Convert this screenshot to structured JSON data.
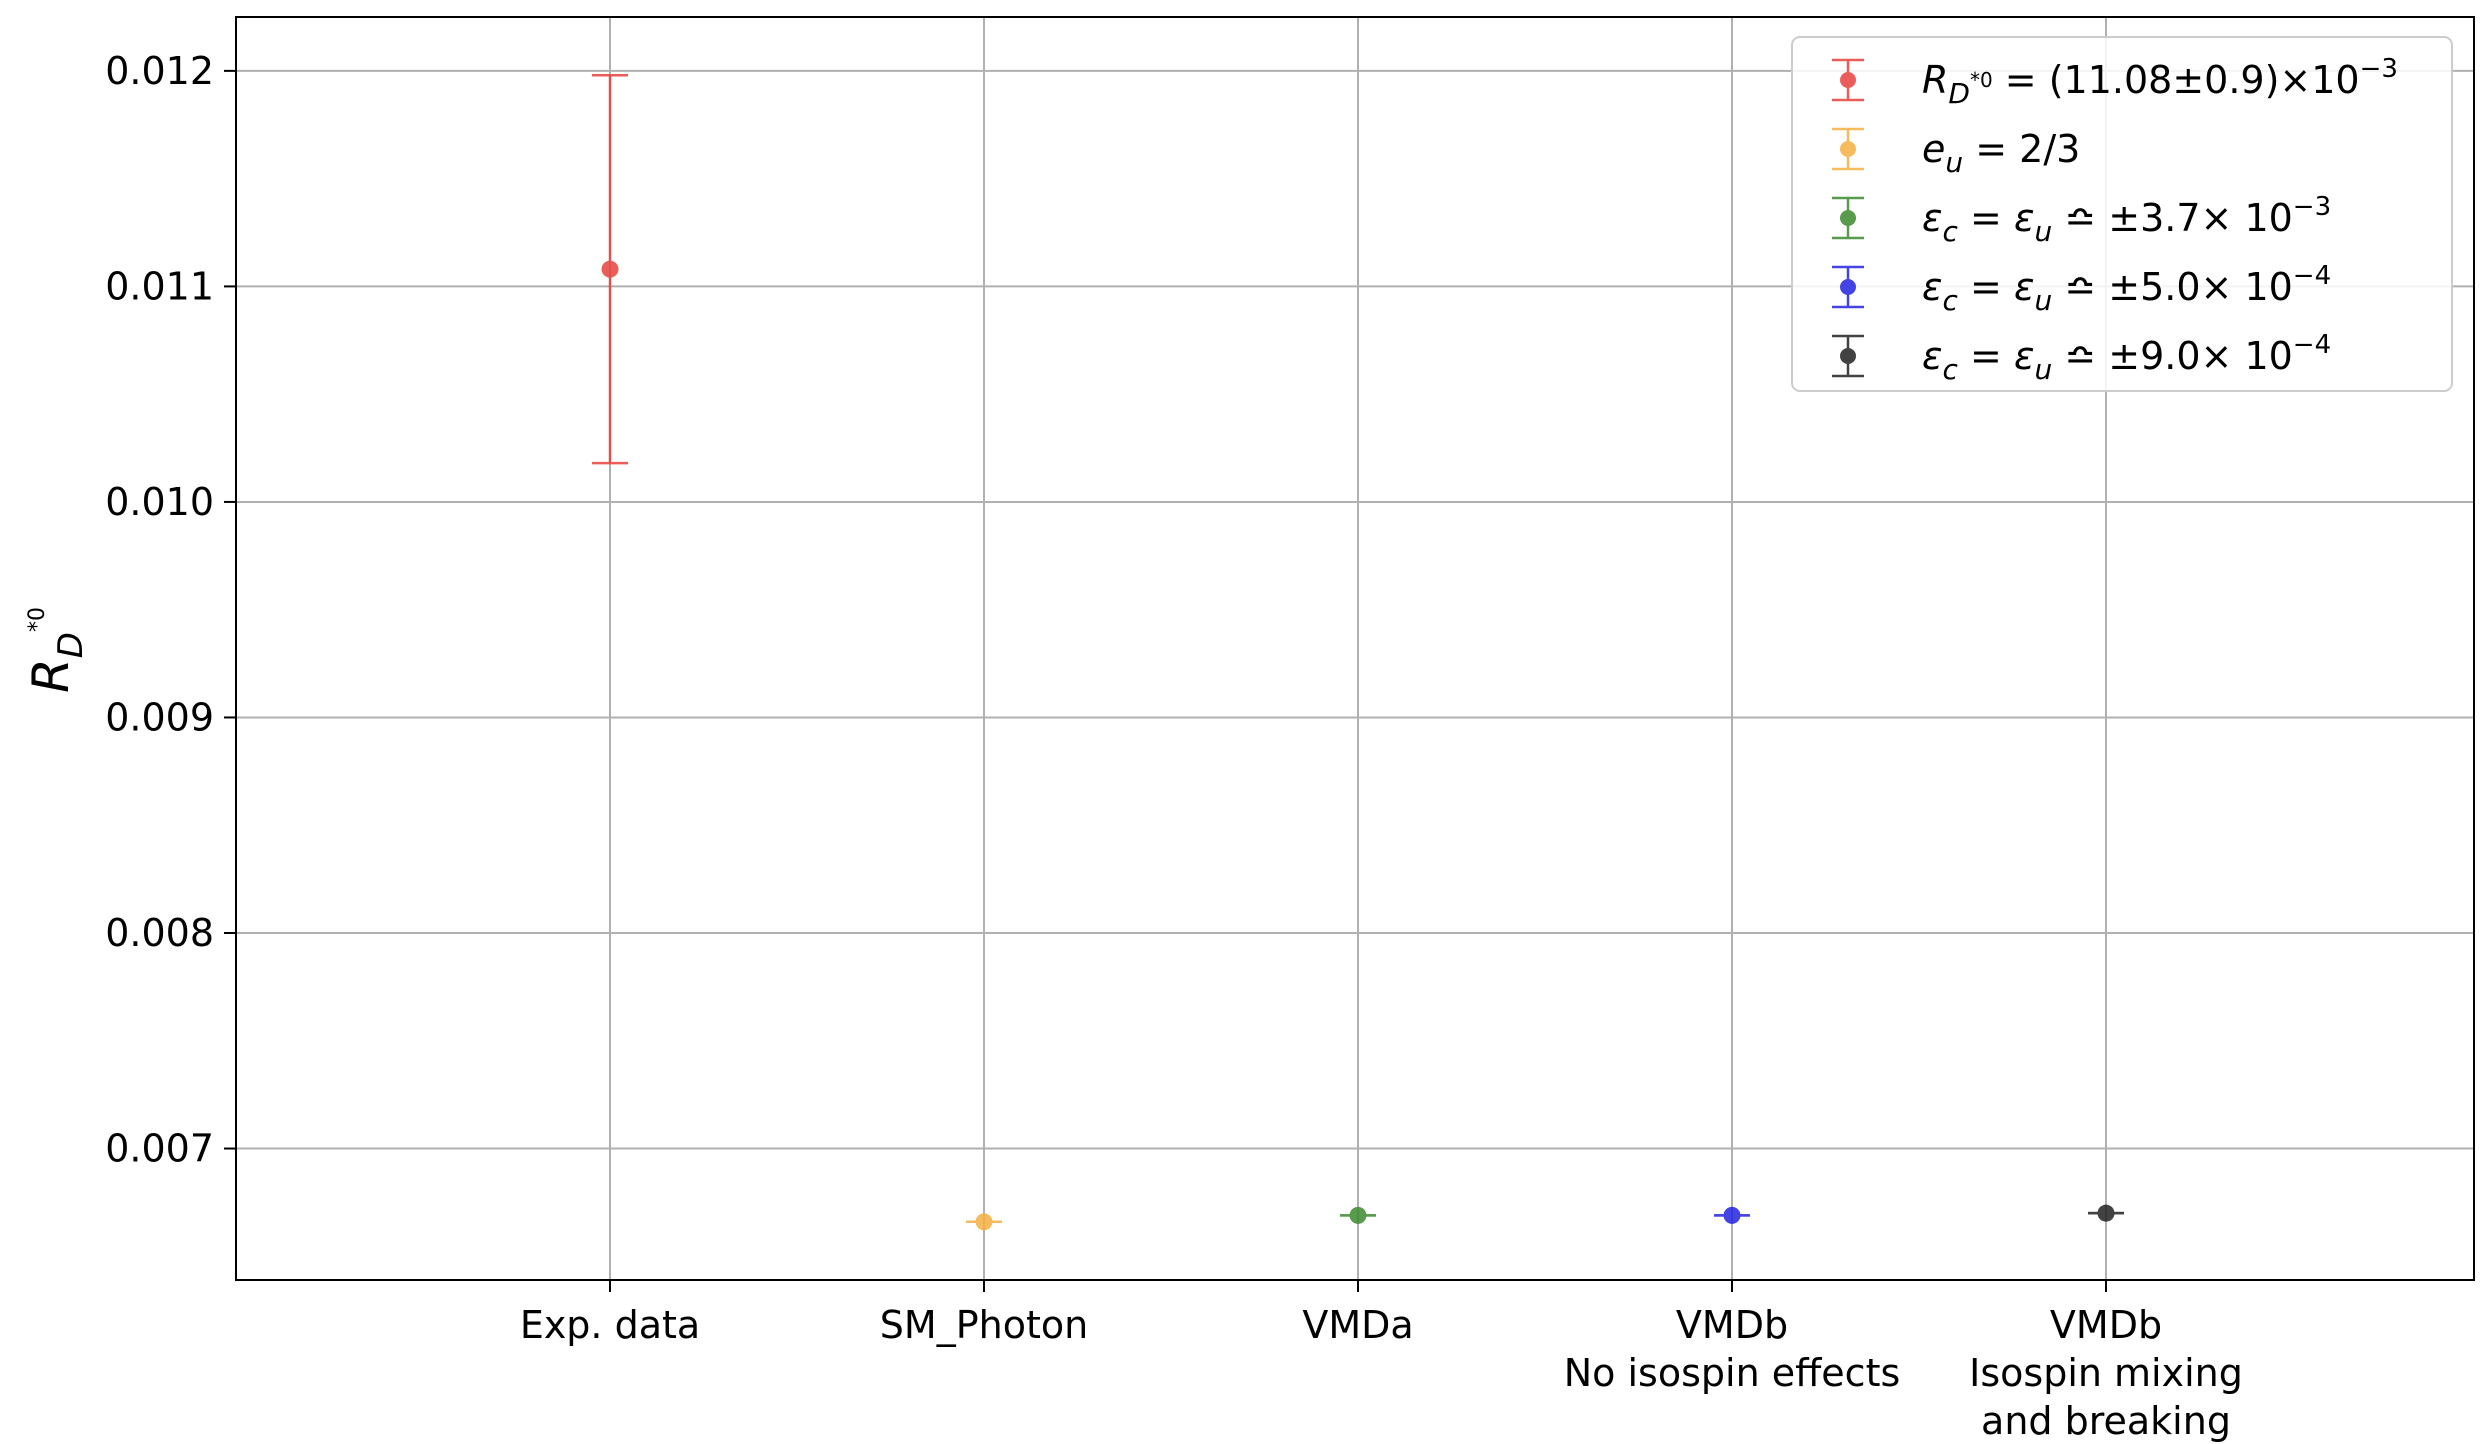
{
  "chart_data": {
    "type": "scatter",
    "xlabel": "",
    "ylabel": {
      "base": "R",
      "sub": "D",
      "sup": "*0"
    },
    "ylim": [
      0.00639,
      0.01225
    ],
    "yticks": [
      0.007,
      0.008,
      0.009,
      0.01,
      0.011,
      0.012
    ],
    "ytick_labels": [
      "0.007",
      "0.008",
      "0.009",
      "0.010",
      "0.011",
      "0.012"
    ],
    "categories": [
      [
        "Exp. data"
      ],
      [
        "SM_Photon"
      ],
      [
        "VMDa"
      ],
      [
        "VMDb",
        "No isospin effects"
      ],
      [
        "VMDb",
        "Isospin mixing",
        "and breaking"
      ]
    ],
    "grid": true,
    "legend_position": "top-right",
    "series": [
      {
        "category_index": 0,
        "value": 0.01108,
        "error": 0.0009,
        "color": "#e8413c"
      },
      {
        "category_index": 1,
        "value": 0.00666,
        "error": 0.0,
        "color": "#f5b041"
      },
      {
        "category_index": 2,
        "value": 0.00669,
        "error": 0.0,
        "color": "#3c8a2e"
      },
      {
        "category_index": 3,
        "value": 0.00669,
        "error": 0.0,
        "color": "#2424e0"
      },
      {
        "category_index": 4,
        "value": 0.0067,
        "error": 0.0,
        "color": "#222222"
      }
    ],
    "legend": [
      {
        "color": "#e8413c",
        "parts": [
          {
            "t": "R",
            "i": true
          },
          {
            "t": "D",
            "i": true,
            "sub": true
          },
          {
            "t": "*0",
            "sup2": true
          },
          {
            "t": " = (11.08±0.9)×10"
          },
          {
            "t": "−3",
            "sup": true
          }
        ]
      },
      {
        "color": "#f5b041",
        "parts": [
          {
            "t": "e",
            "i": true
          },
          {
            "t": "u",
            "i": true,
            "sub": true
          },
          {
            "t": " = 2/3"
          }
        ]
      },
      {
        "color": "#3c8a2e",
        "parts": [
          {
            "t": "ε",
            "i": true
          },
          {
            "t": "c",
            "i": true,
            "sub": true
          },
          {
            "t": " = "
          },
          {
            "t": "ε",
            "i": true
          },
          {
            "t": "u",
            "i": true,
            "sub": true
          },
          {
            "t": " ≏ ±3.7× 10"
          },
          {
            "t": "−3",
            "sup": true
          }
        ]
      },
      {
        "color": "#2424e0",
        "parts": [
          {
            "t": "ε",
            "i": true
          },
          {
            "t": "c",
            "i": true,
            "sub": true
          },
          {
            "t": " = "
          },
          {
            "t": "ε",
            "i": true
          },
          {
            "t": "u",
            "i": true,
            "sub": true
          },
          {
            "t": " ≏ ±5.0× 10"
          },
          {
            "t": "−4",
            "sup": true
          }
        ]
      },
      {
        "color": "#222222",
        "parts": [
          {
            "t": "ε",
            "i": true
          },
          {
            "t": "c",
            "i": true,
            "sub": true
          },
          {
            "t": " = "
          },
          {
            "t": "ε",
            "i": true
          },
          {
            "t": "u",
            "i": true,
            "sub": true
          },
          {
            "t": " ≏ ±9.0× 10"
          },
          {
            "t": "−4",
            "sup": true
          }
        ]
      }
    ]
  }
}
